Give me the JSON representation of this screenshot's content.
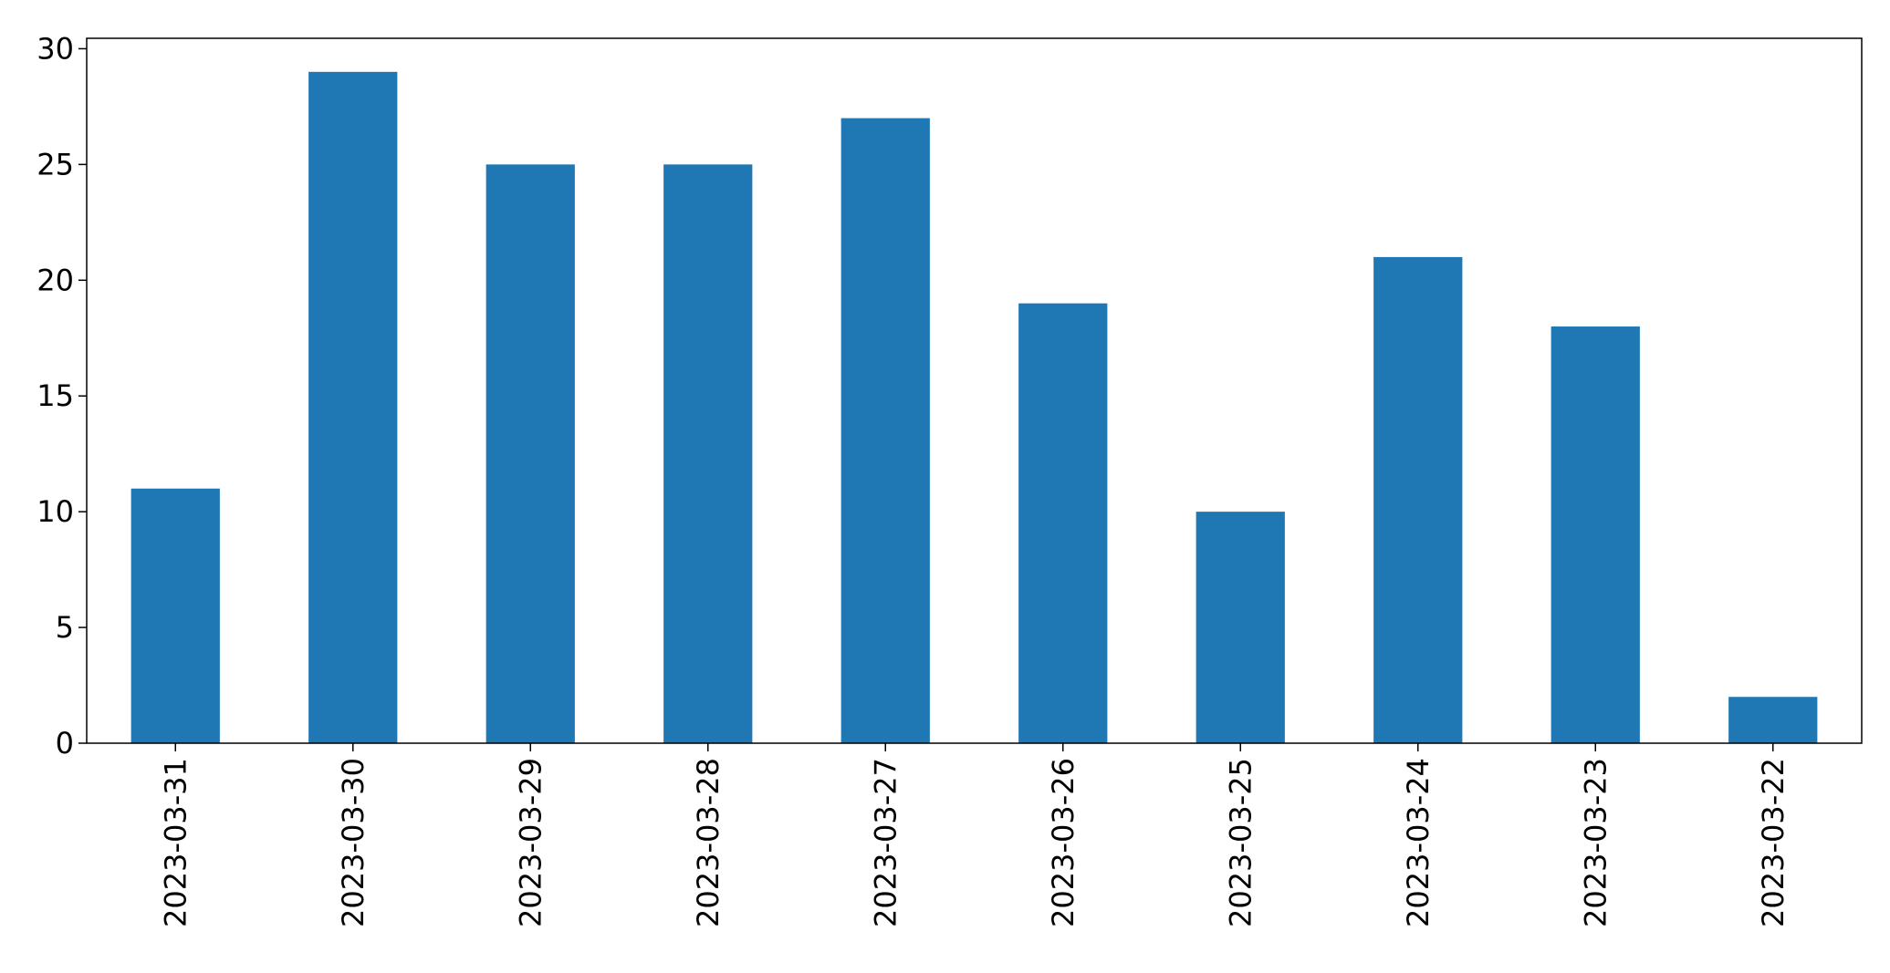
{
  "chart_data": {
    "type": "bar",
    "title": "",
    "xlabel": "",
    "ylabel": "",
    "categories": [
      "2023-03-31",
      "2023-03-30",
      "2023-03-29",
      "2023-03-28",
      "2023-03-27",
      "2023-03-26",
      "2023-03-25",
      "2023-03-24",
      "2023-03-23",
      "2023-03-22"
    ],
    "values": [
      11,
      29,
      25,
      25,
      27,
      19,
      10,
      21,
      18,
      2
    ],
    "ylim": [
      0,
      30.45
    ],
    "yticks": [
      0,
      5,
      10,
      15,
      20,
      25,
      30
    ],
    "grid": false,
    "legend": "none",
    "bar_color": "#1f77b4",
    "x_tick_rotation": "vertical"
  }
}
